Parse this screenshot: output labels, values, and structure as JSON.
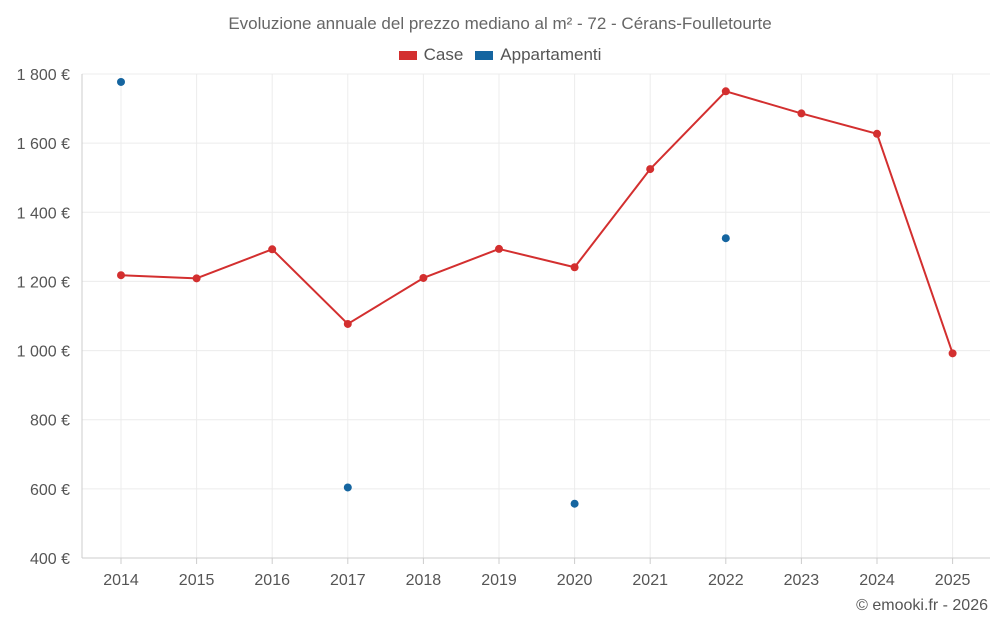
{
  "chart_data": {
    "type": "line",
    "title": "Evoluzione annuale del prezzo mediano al m² - 72 - Cérans-Foulletourte",
    "xlabel": "",
    "ylabel": "",
    "x": [
      2014,
      2015,
      2016,
      2017,
      2018,
      2019,
      2020,
      2021,
      2022,
      2023,
      2024,
      2025
    ],
    "ylim": [
      400,
      1800
    ],
    "yticks": [
      400,
      600,
      800,
      1000,
      1200,
      1400,
      1600,
      1800
    ],
    "ytick_labels": [
      "400 €",
      "600 €",
      "800 €",
      "1 000 €",
      "1 200 €",
      "1 400 €",
      "1 600 €",
      "1 800 €"
    ],
    "grid": true,
    "legend_position": "top-center",
    "series": [
      {
        "name": "Case",
        "color": "#d32f2f",
        "mode": "line+markers",
        "values": [
          1218,
          1209,
          1293,
          1077,
          1210,
          1294,
          1241,
          1525,
          1750,
          1686,
          1627,
          992
        ]
      },
      {
        "name": "Appartamenti",
        "color": "#1565a0",
        "mode": "markers",
        "values": [
          1777,
          null,
          null,
          604,
          null,
          null,
          557,
          null,
          1325,
          null,
          null,
          null
        ]
      }
    ]
  },
  "credit": "© emooki.fr - 2026"
}
